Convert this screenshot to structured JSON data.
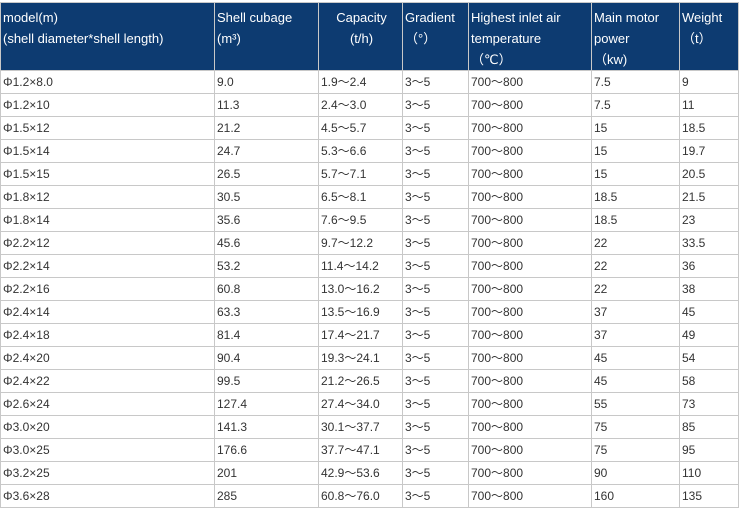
{
  "table": {
    "headers": [
      {
        "lines": [
          " model(m)",
          "(shell diameter*shell length)"
        ],
        "align": "left"
      },
      {
        "lines": [
          "Shell cubage",
          "(m³)"
        ],
        "align": "left"
      },
      {
        "lines": [
          "Capacity",
          "(t/h)"
        ],
        "align": "center"
      },
      {
        "lines": [
          "Gradient",
          "（°）"
        ],
        "align": "left"
      },
      {
        "lines": [
          "Highest inlet air",
          "temperature",
          "（℃）"
        ],
        "align": "left"
      },
      {
        "lines": [
          "Main motor",
          "power",
          "（kw)"
        ],
        "align": "left"
      },
      {
        "lines": [
          "Weight",
          "（t）"
        ],
        "align": "left"
      }
    ],
    "rows": [
      [
        "Φ1.2×8.0",
        "9.0",
        "1.9～2.4",
        "3～5",
        "700～800",
        "7.5",
        "9"
      ],
      [
        "Φ1.2×10",
        "11.3",
        "2.4～3.0",
        "3～5",
        "700～800",
        "7.5",
        "11"
      ],
      [
        "Φ1.5×12",
        "21.2",
        "4.5～5.7",
        "3～5",
        "700～800",
        "15",
        "18.5"
      ],
      [
        "Φ1.5×14",
        "24.7",
        "5.3～6.6",
        "3～5",
        "700～800",
        "15",
        "19.7"
      ],
      [
        "Φ1.5×15",
        "26.5",
        "5.7～7.1",
        "3～5",
        "700～800",
        "15",
        "20.5"
      ],
      [
        "Φ1.8×12",
        "30.5",
        "6.5～8.1",
        "3～5",
        "700～800",
        "18.5",
        "21.5"
      ],
      [
        "Φ1.8×14",
        "35.6",
        "7.6～9.5",
        "3～5",
        "700～800",
        "18.5",
        "23"
      ],
      [
        "Φ2.2×12",
        "45.6",
        "9.7～12.2",
        "3～5",
        "700～800",
        "22",
        "33.5"
      ],
      [
        "Φ2.2×14",
        "53.2",
        "11.4～14.2",
        "3～5",
        "700～800",
        "22",
        "36"
      ],
      [
        "Φ2.2×16",
        "60.8",
        "13.0～16.2",
        "3～5",
        "700～800",
        "22",
        "38"
      ],
      [
        "Φ2.4×14",
        "63.3",
        "13.5～16.9",
        "3～5",
        "700～800",
        "37",
        "45"
      ],
      [
        "Φ2.4×18",
        "81.4",
        "17.4～21.7",
        "3～5",
        "700～800",
        "37",
        "49"
      ],
      [
        "Φ2.4×20",
        "90.4",
        "19.3～24.1",
        "3～5",
        "700～800",
        "45",
        "54"
      ],
      [
        "Φ2.4×22",
        "99.5",
        "21.2～26.5",
        "3～5",
        "700～800",
        "45",
        "58"
      ],
      [
        "Φ2.6×24",
        "127.4",
        "27.4～34.0",
        "3～5",
        "700～800",
        "55",
        "73"
      ],
      [
        "Φ3.0×20",
        "141.3",
        "30.1～37.7",
        "3～5",
        "700～800",
        "75",
        "85"
      ],
      [
        "Φ3.0×25",
        "176.6",
        "37.7～47.1",
        "3～5",
        "700～800",
        "75",
        "95"
      ],
      [
        "Φ3.2×25",
        "201",
        "42.9～53.6",
        "3～5",
        "700～800",
        "90",
        "110"
      ],
      [
        "Φ3.6×28",
        "285",
        "60.8～76.0",
        "3～5",
        "700～800",
        "160",
        "135"
      ]
    ]
  },
  "colors": {
    "header_bg": "#0d3b71",
    "header_text": "#ffffff",
    "border": "#c8c8c8",
    "cell_text": "#333333"
  }
}
